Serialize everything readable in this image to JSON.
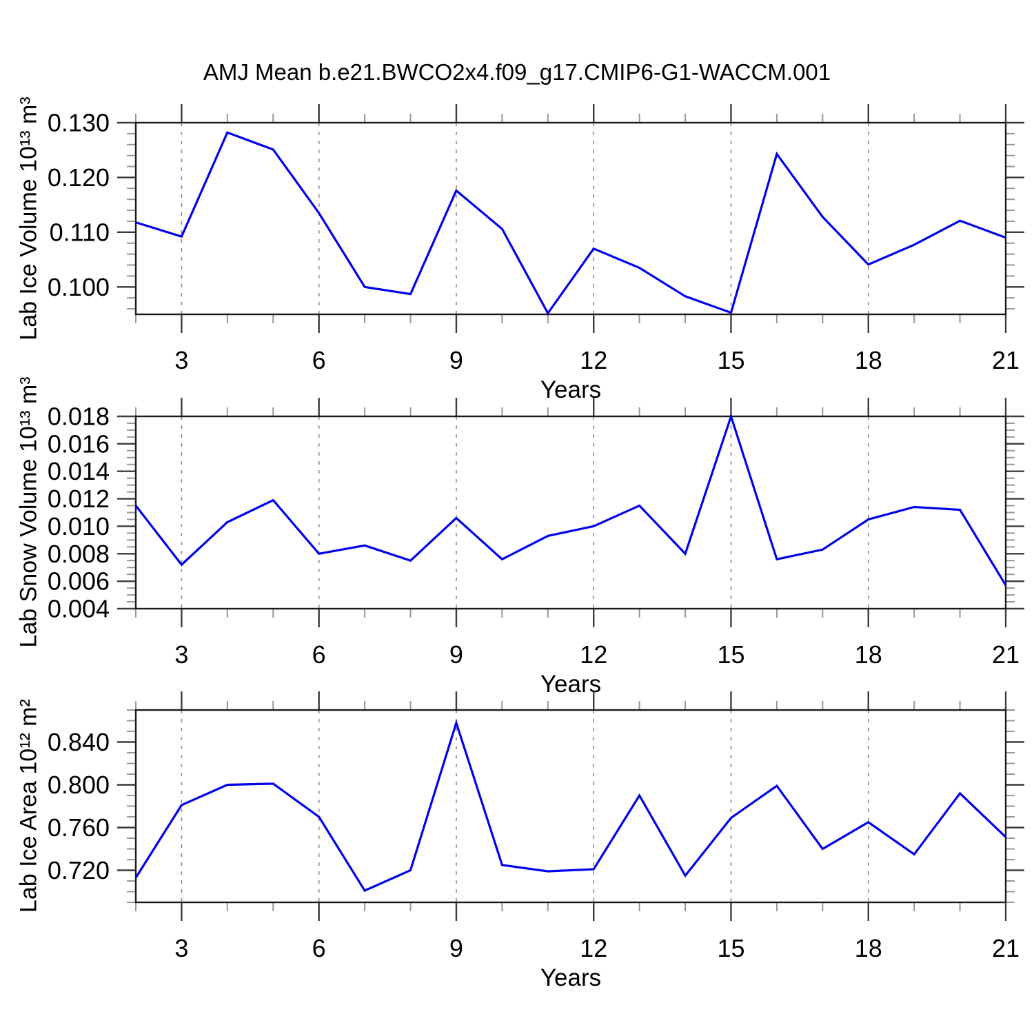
{
  "title": "AMJ Mean b.e21.BWCO2x4.f09_g17.CMIP6-G1-WACCM.001",
  "styles": {
    "line_color": "#0000EE",
    "grid_color": "#8a8a8a",
    "frame_color": "#1a1a1a",
    "major_tick_color": "#3c3c3c",
    "minor_tick_color": "#979797",
    "text_color": "#000000",
    "background": "#ffffff"
  },
  "chart_data": [
    {
      "type": "line",
      "panel": "lab-ice-volume",
      "ylabel": "Lab Ice Volume 10¹³ m³",
      "xlabel": "Years",
      "x": [
        2,
        3,
        4,
        5,
        6,
        7,
        8,
        9,
        10,
        11,
        12,
        13,
        14,
        15,
        16,
        17,
        18,
        19,
        20,
        21
      ],
      "values": [
        0.1118,
        0.1092,
        0.1282,
        0.1251,
        0.1135,
        0.1,
        0.0987,
        0.1176,
        0.1106,
        0.0952,
        0.107,
        0.1035,
        0.0983,
        0.0953,
        0.1243,
        0.1128,
        0.1041,
        0.1077,
        0.1121,
        0.109
      ],
      "xlim": [
        2,
        21
      ],
      "ylim": [
        0.095,
        0.13
      ],
      "xticks_major": [
        3,
        6,
        9,
        12,
        15,
        18,
        21
      ],
      "xtick_labels": [
        "3",
        "6",
        "9",
        "12",
        "15",
        "18",
        "21"
      ],
      "yticks_major": [
        0.1,
        0.11,
        0.12,
        0.13
      ],
      "ytick_labels": [
        "0.100",
        "0.110",
        "0.120",
        "0.130"
      ],
      "ytick_minor_step": 0.002,
      "grid_x": [
        3,
        6,
        9,
        12,
        15,
        18
      ],
      "grid_style": "dashed-vertical",
      "legend": "none"
    },
    {
      "type": "line",
      "panel": "lab-snow-volume",
      "ylabel": "Lab Snow Volume 10¹³ m³",
      "xlabel": "Years",
      "x": [
        2,
        3,
        4,
        5,
        6,
        7,
        8,
        9,
        10,
        11,
        12,
        13,
        14,
        15,
        16,
        17,
        18,
        19,
        20,
        21
      ],
      "values": [
        0.0115,
        0.0072,
        0.0103,
        0.0119,
        0.008,
        0.0086,
        0.0075,
        0.0106,
        0.0076,
        0.0093,
        0.01,
        0.0115,
        0.008,
        0.018,
        0.0076,
        0.0083,
        0.0105,
        0.0114,
        0.0112,
        0.0057
      ],
      "xlim": [
        2,
        21
      ],
      "ylim": [
        0.004,
        0.018
      ],
      "xticks_major": [
        3,
        6,
        9,
        12,
        15,
        18,
        21
      ],
      "xtick_labels": [
        "3",
        "6",
        "9",
        "12",
        "15",
        "18",
        "21"
      ],
      "yticks_major": [
        0.004,
        0.006,
        0.008,
        0.01,
        0.012,
        0.014,
        0.016,
        0.018
      ],
      "ytick_labels": [
        "0.004",
        "0.006",
        "0.008",
        "0.010",
        "0.012",
        "0.014",
        "0.016",
        "0.018"
      ],
      "ytick_minor_step": 0.0005,
      "grid_x": [
        3,
        6,
        9,
        12,
        15,
        18
      ],
      "grid_style": "dashed-vertical",
      "legend": "none"
    },
    {
      "type": "line",
      "panel": "lab-ice-area",
      "ylabel": "Lab Ice Area 10¹² m²",
      "xlabel": "Years",
      "x": [
        2,
        3,
        4,
        5,
        6,
        7,
        8,
        9,
        10,
        11,
        12,
        13,
        14,
        15,
        16,
        17,
        18,
        19,
        20,
        21
      ],
      "values": [
        0.713,
        0.781,
        0.8,
        0.801,
        0.77,
        0.701,
        0.72,
        0.858,
        0.725,
        0.719,
        0.721,
        0.79,
        0.715,
        0.769,
        0.799,
        0.74,
        0.765,
        0.735,
        0.792,
        0.751
      ],
      "xlim": [
        2,
        21
      ],
      "ylim": [
        0.69,
        0.87
      ],
      "xticks_major": [
        3,
        6,
        9,
        12,
        15,
        18,
        21
      ],
      "xtick_labels": [
        "3",
        "6",
        "9",
        "12",
        "15",
        "18",
        "21"
      ],
      "yticks_major": [
        0.72,
        0.76,
        0.8,
        0.84
      ],
      "ytick_labels": [
        "0.720",
        "0.760",
        "0.800",
        "0.840"
      ],
      "ytick_minor_step": 0.01,
      "grid_x": [
        3,
        6,
        9,
        12,
        15,
        18
      ],
      "grid_style": "dashed-vertical",
      "legend": "none"
    }
  ]
}
